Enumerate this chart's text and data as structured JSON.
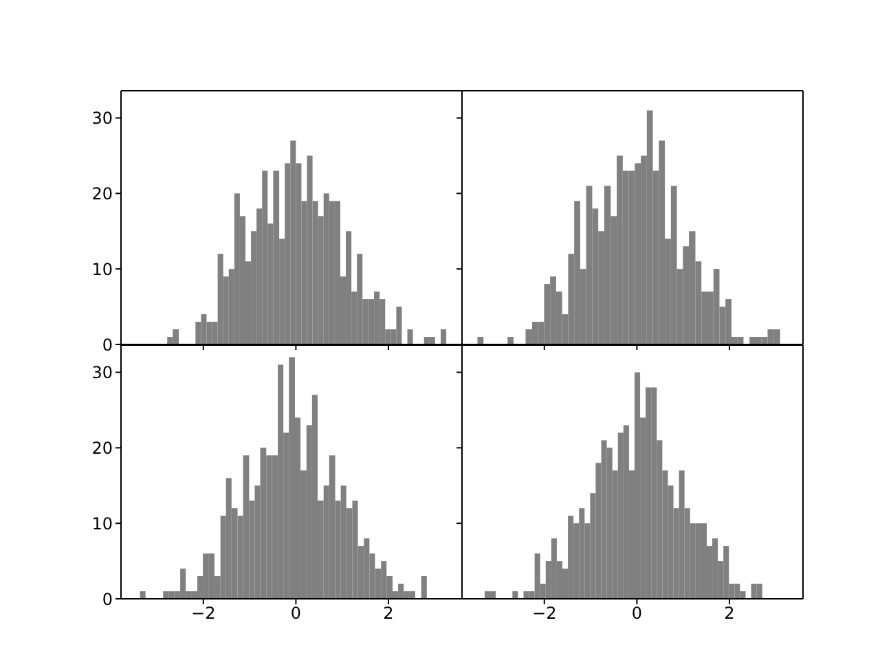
{
  "chart_data": [
    {
      "type": "histogram",
      "color": "#808080",
      "xlim": [
        -3.78,
        3.59
      ],
      "ylim": [
        0,
        33.6
      ],
      "xticks": [
        -2,
        0,
        2
      ],
      "yticks": [
        0,
        10,
        20,
        30
      ],
      "tick_labels": "y",
      "bins": [
        -2.78,
        -2.66,
        -2.53,
        -2.17,
        -2.05,
        -1.93,
        -1.81,
        -1.69,
        -1.57,
        -1.45,
        -1.33,
        -1.21,
        -1.09,
        -0.97,
        -0.85,
        -0.73,
        -0.61,
        -0.49,
        -0.36,
        -0.24,
        -0.12,
        0.0,
        0.12,
        0.24,
        0.36,
        0.48,
        0.6,
        0.72,
        0.84,
        0.96,
        1.08,
        1.2,
        1.32,
        1.44,
        1.56,
        1.69,
        1.81,
        1.93,
        2.05,
        2.17,
        2.29,
        2.41,
        2.53,
        2.77,
        2.89,
        3.01,
        3.13,
        3.25
      ],
      "values": [
        1,
        2,
        0,
        3,
        4,
        3,
        3,
        12,
        9,
        10,
        20,
        17,
        11,
        15,
        18,
        23,
        16,
        23,
        14,
        24,
        27,
        24,
        19,
        25,
        19,
        17,
        20,
        19,
        19,
        9,
        15,
        7,
        12,
        6,
        6,
        7,
        6,
        2,
        2,
        5,
        0,
        2,
        0,
        1,
        1,
        0,
        2
      ]
    },
    {
      "type": "histogram",
      "color": "#808080",
      "xlim": [
        -3.78,
        3.59
      ],
      "ylim": [
        0,
        33.6
      ],
      "xticks": [
        -2,
        0,
        2
      ],
      "yticks": [
        0,
        10,
        20,
        30
      ],
      "tick_labels": false,
      "bins": [
        -3.44,
        -3.31,
        -2.79,
        -2.66,
        -2.4,
        -2.26,
        -2.13,
        -2.0,
        -1.87,
        -1.74,
        -1.61,
        -1.48,
        -1.35,
        -1.22,
        -1.09,
        -0.96,
        -0.83,
        -0.7,
        -0.56,
        -0.43,
        -0.3,
        -0.17,
        -0.04,
        0.09,
        0.22,
        0.35,
        0.48,
        0.61,
        0.74,
        0.87,
        1.0,
        1.13,
        1.27,
        1.4,
        1.53,
        1.66,
        1.79,
        1.92,
        2.05,
        2.18,
        2.31,
        2.44,
        2.57,
        2.7,
        2.83,
        2.96,
        3.1
      ],
      "values": [
        1,
        0,
        1,
        0,
        2,
        3,
        3,
        8,
        9,
        7,
        4,
        12,
        19,
        10,
        21,
        18,
        15,
        21,
        17,
        25,
        23,
        23,
        24,
        25,
        31,
        23,
        27,
        14,
        21,
        10,
        13,
        15,
        11,
        7,
        7,
        10,
        5,
        6,
        1,
        1,
        0,
        1,
        1,
        1,
        2,
        2
      ]
    },
    {
      "type": "histogram",
      "color": "#808080",
      "xlim": [
        -3.78,
        3.59
      ],
      "ylim": [
        0,
        33.6
      ],
      "xticks": [
        -2,
        0,
        2
      ],
      "yticks": [
        0,
        10,
        20,
        30
      ],
      "bins": [
        -3.37,
        -3.25,
        -2.87,
        -2.75,
        -2.63,
        -2.5,
        -2.38,
        -2.25,
        -2.13,
        -2.01,
        -1.88,
        -1.76,
        -1.63,
        -1.51,
        -1.39,
        -1.26,
        -1.14,
        -1.01,
        -0.89,
        -0.77,
        -0.64,
        -0.52,
        -0.39,
        -0.27,
        -0.15,
        -0.02,
        0.1,
        0.23,
        0.35,
        0.47,
        0.6,
        0.72,
        0.85,
        0.97,
        1.09,
        1.22,
        1.34,
        1.47,
        1.59,
        1.71,
        1.84,
        1.96,
        2.09,
        2.21,
        2.33,
        2.46,
        2.58,
        2.71,
        2.83
      ],
      "values": [
        1,
        0,
        1,
        1,
        1,
        4,
        1,
        1,
        3,
        6,
        6,
        3,
        11,
        16,
        12,
        11,
        19,
        13,
        15,
        20,
        19,
        19,
        31,
        22,
        32,
        24,
        17,
        23,
        27,
        13,
        15,
        19,
        13,
        15,
        12,
        13,
        7,
        8,
        6,
        4,
        5,
        3,
        1,
        2,
        1,
        1,
        0,
        3
      ]
    },
    {
      "type": "histogram",
      "color": "#808080",
      "xlim": [
        -3.78,
        3.59
      ],
      "ylim": [
        0,
        33.6
      ],
      "xticks": [
        -2,
        0,
        2
      ],
      "yticks": [
        0,
        10,
        20,
        30
      ],
      "tick_labels": "x",
      "bins": [
        -3.29,
        -3.17,
        -3.05,
        -2.69,
        -2.57,
        -2.45,
        -2.33,
        -2.21,
        -2.09,
        -1.97,
        -1.85,
        -1.73,
        -1.61,
        -1.49,
        -1.37,
        -1.25,
        -1.13,
        -1.01,
        -0.89,
        -0.77,
        -0.65,
        -0.53,
        -0.41,
        -0.29,
        -0.17,
        -0.05,
        0.07,
        0.19,
        0.31,
        0.43,
        0.55,
        0.67,
        0.79,
        0.91,
        1.03,
        1.15,
        1.27,
        1.39,
        1.51,
        1.63,
        1.75,
        1.87,
        1.99,
        2.11,
        2.23,
        2.35,
        2.47,
        2.59,
        2.71
      ],
      "values": [
        1,
        1,
        0,
        1,
        0,
        1,
        1,
        6,
        2,
        5,
        8,
        5,
        4,
        11,
        10,
        12,
        10,
        14,
        18,
        21,
        20,
        17,
        22,
        23,
        17,
        30,
        24,
        28,
        28,
        21,
        17,
        15,
        12,
        17,
        12,
        10,
        10,
        10,
        7,
        8,
        5,
        7,
        2,
        2,
        1,
        0,
        2,
        2
      ]
    }
  ]
}
